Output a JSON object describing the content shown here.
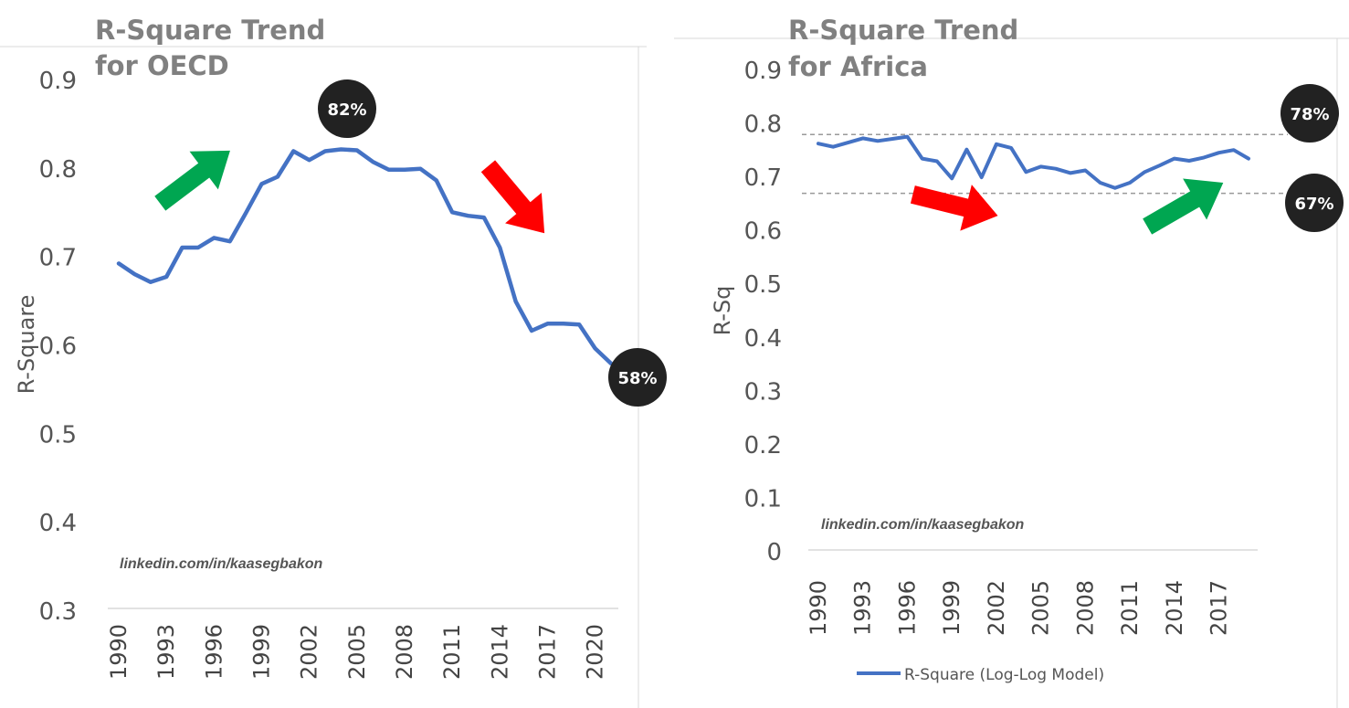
{
  "colors": {
    "line": "#4472C4",
    "up_arrow": "#00A651",
    "down_arrow": "#FF0000",
    "badge": "#222222",
    "ref_line": "#999999"
  },
  "chart_data": [
    {
      "type": "line",
      "title": [
        "R-Square Trend",
        "for OECD"
      ],
      "ylabel": "R-Square",
      "xlabel": "",
      "ylim": [
        0.3,
        0.9
      ],
      "yticks": [
        "0.9",
        "0.8",
        "0.7",
        "0.6",
        "0.5",
        "0.4",
        "0.3"
      ],
      "xticks": [
        "1990",
        "1993",
        "1996",
        "1999",
        "2002",
        "2005",
        "2008",
        "2011",
        "2014",
        "2017",
        "2020"
      ],
      "x": [
        1990,
        1991,
        1992,
        1993,
        1994,
        1995,
        1996,
        1997,
        1998,
        1999,
        2000,
        2001,
        2002,
        2003,
        2004,
        2005,
        2006,
        2007,
        2008,
        2009,
        2010,
        2011,
        2012,
        2013,
        2014,
        2015,
        2016,
        2017,
        2018,
        2019,
        2020,
        2021
      ],
      "series": [
        {
          "values": [
            0.693,
            0.681,
            0.672,
            0.678,
            0.711,
            0.711,
            0.722,
            0.718,
            0.75,
            0.783,
            0.791,
            0.82,
            0.81,
            0.82,
            0.822,
            0.821,
            0.808,
            0.799,
            0.799,
            0.8,
            0.787,
            0.751,
            0.747,
            0.745,
            0.711,
            0.65,
            0.617,
            0.625,
            0.625,
            0.624,
            0.597,
            0.58
          ]
        }
      ],
      "credit": "linkedin.com/in/kaasegbakon",
      "badges": [
        "82%",
        "58%"
      ],
      "grid": false
    },
    {
      "type": "line",
      "title": [
        "R-Square Trend",
        "for Africa"
      ],
      "ylabel": "R-Sq",
      "xlabel": "",
      "ylim": [
        0,
        0.9
      ],
      "yticks": [
        "0.9",
        "0.8",
        "0.7",
        "0.6",
        "0.5",
        "0.4",
        "0.3",
        "0.2",
        "0.1",
        "0"
      ],
      "xticks": [
        "1990",
        "1993",
        "1996",
        "1999",
        "2002",
        "2005",
        "2008",
        "2011",
        "2014",
        "2017"
      ],
      "x": [
        1990,
        1991,
        1992,
        1993,
        1994,
        1995,
        1996,
        1997,
        1998,
        1999,
        2000,
        2001,
        2002,
        2003,
        2004,
        2005,
        2006,
        2007,
        2008,
        2009,
        2010,
        2011,
        2012,
        2013,
        2014,
        2015,
        2016,
        2017,
        2018,
        2019
      ],
      "series": [
        {
          "name": "R-Square (Log-Log Model)",
          "values": [
            0.763,
            0.757,
            0.765,
            0.773,
            0.768,
            0.772,
            0.776,
            0.735,
            0.73,
            0.698,
            0.752,
            0.7,
            0.762,
            0.755,
            0.71,
            0.72,
            0.716,
            0.708,
            0.713,
            0.69,
            0.68,
            0.69,
            0.71,
            0.722,
            0.735,
            0.731,
            0.737,
            0.746,
            0.751,
            0.735
          ]
        }
      ],
      "reference_lines": [
        0.78,
        0.67
      ],
      "credit": "linkedin.com/in/kaasegbakon",
      "badges": [
        "78%",
        "67%"
      ],
      "legend": "bottom",
      "grid": false
    }
  ]
}
